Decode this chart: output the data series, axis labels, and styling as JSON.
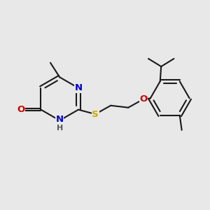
{
  "bg_color": "#e8e8e8",
  "atom_colors": {
    "C": "#1a1a1a",
    "N": "#0000cc",
    "O": "#cc0000",
    "S": "#ccaa00",
    "H": "#555555"
  },
  "bond_color": "#1a1a1a",
  "bond_width": 1.5,
  "font_size": 9.5,
  "fig_size": [
    3.0,
    3.0
  ],
  "dpi": 100
}
